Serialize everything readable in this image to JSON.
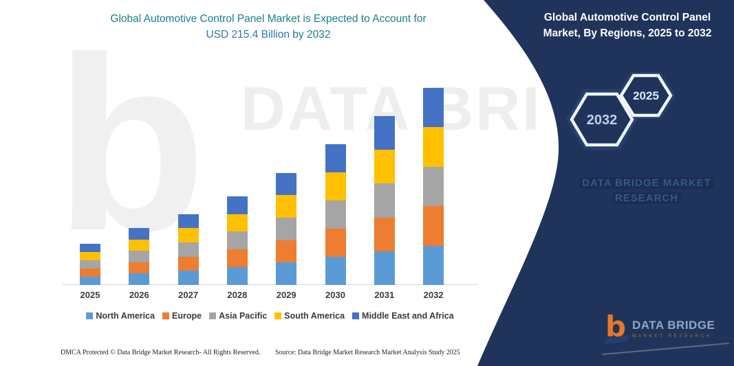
{
  "header": {
    "title_line1": "Global Automotive Control Panel Market is Expected to Account for",
    "title_highlight": "USD 215.4 Billion",
    "title_suffix": " by 2032"
  },
  "right_panel": {
    "title": "Global Automotive Control Panel Market, By Regions, 2025 to 2032",
    "hexagon_back_year": "2032",
    "hexagon_front_year": "2025",
    "watermark_line1": "DATA BRIDGE MARKET",
    "watermark_line2": "RESEARCH",
    "background_color": "#20345B"
  },
  "logo": {
    "monogram": "b",
    "name": "DATA BRIDGE",
    "subtitle": "MARKET RESEARCH",
    "accent_color": "#E8772A"
  },
  "watermark": {
    "letter": "b",
    "text": "DATA BRI"
  },
  "footer": {
    "dmca": "DMCA Protected © Data Bridge Market Research- All Rights Reserved.",
    "source": "Source: Data Bridge Market Research Market Analysis Study 2025"
  },
  "chart_data": {
    "type": "bar",
    "stacked": true,
    "title": "Global Automotive Control Panel Market is Expected to Account for USD 215.4 Billion by 2032",
    "unit": "USD Billion",
    "categories": [
      "2025",
      "2026",
      "2027",
      "2028",
      "2029",
      "2030",
      "2031",
      "2032"
    ],
    "totals": [
      45.0,
      62.0,
      77.5,
      97.0,
      122.5,
      153.5,
      184.5,
      215.4
    ],
    "series": [
      {
        "name": "North America",
        "color": "#5B9BD5",
        "values": [
          9.0,
          12.4,
          15.5,
          19.4,
          24.5,
          30.7,
          36.9,
          43.1
        ]
      },
      {
        "name": "Europe",
        "color": "#ED7D31",
        "values": [
          9.0,
          12.4,
          15.5,
          19.4,
          24.5,
          30.7,
          36.9,
          43.1
        ]
      },
      {
        "name": "Asia Pacific",
        "color": "#A5A5A5",
        "values": [
          9.0,
          12.4,
          15.5,
          19.4,
          24.5,
          30.7,
          36.9,
          43.1
        ]
      },
      {
        "name": "South America",
        "color": "#FFC000",
        "values": [
          9.0,
          12.4,
          15.5,
          19.4,
          24.5,
          30.7,
          36.9,
          43.1
        ]
      },
      {
        "name": "Middle East and Africa",
        "color": "#4472C4",
        "values": [
          9.0,
          12.4,
          15.5,
          19.4,
          24.5,
          30.7,
          36.9,
          43.1
        ]
      }
    ],
    "ylim": [
      0,
      240
    ],
    "grid": false,
    "legend_position": "bottom",
    "xlabel": "",
    "ylabel": "",
    "values_estimated_from_bar_heights": true
  }
}
